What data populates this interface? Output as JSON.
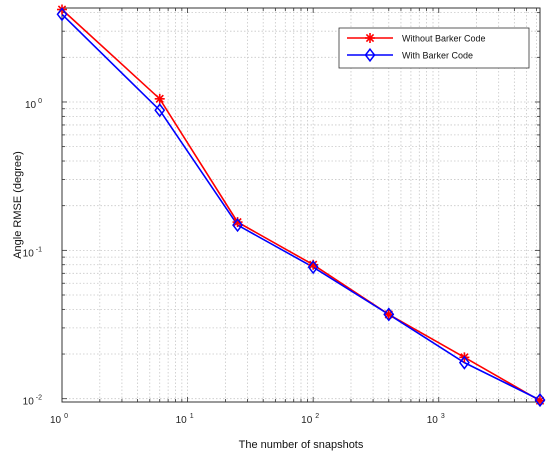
{
  "chart_data": {
    "type": "line",
    "xlabel": "The number of snapshots",
    "ylabel": "Angle RMSE (degree)",
    "xscale": "log",
    "yscale": "log",
    "xlim": [
      1,
      6400
    ],
    "ylim": [
      0.0095,
      4.3
    ],
    "grid": true,
    "legend_position": "top-right",
    "x_ticks": [
      {
        "base": "10",
        "exp": "0",
        "value": 1
      },
      {
        "base": "10",
        "exp": "1",
        "value": 10
      },
      {
        "base": "10",
        "exp": "2",
        "value": 100
      },
      {
        "base": "10",
        "exp": "3",
        "value": 1000
      }
    ],
    "y_ticks": [
      {
        "base": "10",
        "exp": "-2",
        "value": 0.01
      },
      {
        "base": "10",
        "exp": "-1",
        "value": 0.1
      },
      {
        "base": "10",
        "exp": "0",
        "value": 1
      }
    ],
    "x": [
      1,
      6,
      25,
      100,
      400,
      1600,
      6400
    ],
    "series": [
      {
        "name": "Without Barker Code",
        "color": "#ff0000",
        "marker": "asterisk",
        "values": [
          4.2,
          1.05,
          0.155,
          0.08,
          0.037,
          0.019,
          0.0097
        ]
      },
      {
        "name": "With Barker Code",
        "color": "#0000ff",
        "marker": "diamond",
        "values": [
          3.9,
          0.88,
          0.148,
          0.077,
          0.037,
          0.0175,
          0.0098
        ]
      }
    ]
  }
}
